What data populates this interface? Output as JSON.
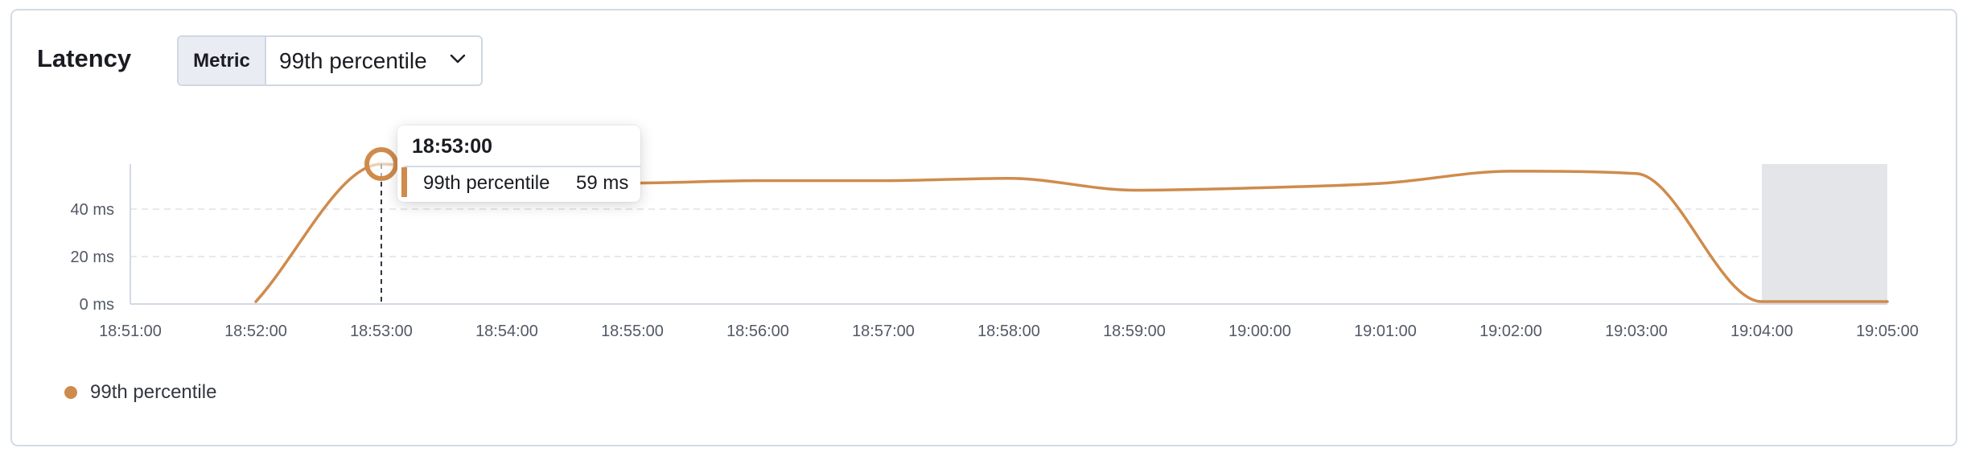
{
  "panel": {
    "title": "Latency",
    "metric_label": "Metric",
    "metric_value": "99th percentile"
  },
  "tooltip": {
    "time": "18:53:00",
    "series": "99th percentile",
    "value": "59 ms"
  },
  "legend": {
    "label": "99th percentile"
  },
  "colors": {
    "series": "#cf8b4c",
    "grid": "#e6e9ef",
    "annotation": "#e4e5e8"
  },
  "chart_data": {
    "type": "line",
    "title": "Latency",
    "xlabel": "",
    "ylabel": "",
    "x_ticks": [
      "18:51:00",
      "18:52:00",
      "18:53:00",
      "18:54:00",
      "18:55:00",
      "18:56:00",
      "18:57:00",
      "18:58:00",
      "18:59:00",
      "19:00:00",
      "19:01:00",
      "19:02:00",
      "19:03:00",
      "19:04:00",
      "19:05:00"
    ],
    "y_ticks": [
      {
        "value": 0,
        "label": "0 ms"
      },
      {
        "value": 20,
        "label": "20 ms"
      },
      {
        "value": 40,
        "label": "40 ms"
      }
    ],
    "ylim": [
      0,
      59
    ],
    "xlim": [
      "18:51:00",
      "19:05:00"
    ],
    "grid": true,
    "legend_position": "bottom-left",
    "series": [
      {
        "name": "99th percentile",
        "x": [
          "18:52:00",
          "18:53:00",
          "18:54:00",
          "18:55:00",
          "18:56:00",
          "18:57:00",
          "18:58:00",
          "18:59:00",
          "19:00:00",
          "19:01:00",
          "19:02:00",
          "19:03:00",
          "19:04:00",
          "19:05:00"
        ],
        "values": [
          1,
          59,
          51,
          51,
          52,
          52,
          53,
          48,
          49,
          51,
          56,
          55,
          1,
          1
        ]
      }
    ],
    "highlight": {
      "x": "18:53:00",
      "value": 59
    },
    "shaded_region": [
      "19:04:00",
      "19:05:00"
    ]
  }
}
